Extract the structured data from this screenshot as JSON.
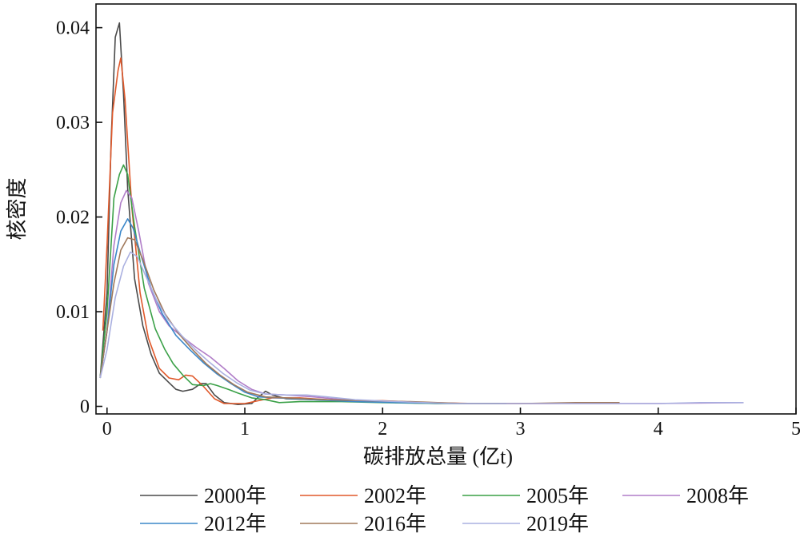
{
  "chart_data": {
    "type": "line",
    "title": "",
    "xlabel": "碳排放总量 (亿t)",
    "ylabel": "核密度",
    "xlim": [
      -0.08,
      5
    ],
    "ylim": [
      -0.0008,
      0.0425
    ],
    "x_ticks": [
      {
        "value": 0,
        "label": "0"
      },
      {
        "value": 1,
        "label": "1"
      },
      {
        "value": 2,
        "label": "2"
      },
      {
        "value": 3,
        "label": "3"
      },
      {
        "value": 4,
        "label": "4"
      },
      {
        "value": 5,
        "label": "5"
      }
    ],
    "y_ticks": [
      {
        "value": 0,
        "label": "0"
      },
      {
        "value": 0.01,
        "label": "0.01"
      },
      {
        "value": 0.02,
        "label": "0.02"
      },
      {
        "value": 0.03,
        "label": "0.03"
      },
      {
        "value": 0.04,
        "label": "0.04"
      }
    ],
    "grid": false,
    "legend_position": "bottom",
    "series": [
      {
        "name": "2000年",
        "color": "#4a4a4a",
        "points": [
          [
            -0.05,
            0.003
          ],
          [
            0.0,
            0.012
          ],
          [
            0.03,
            0.028
          ],
          [
            0.06,
            0.039
          ],
          [
            0.09,
            0.0405
          ],
          [
            0.12,
            0.033
          ],
          [
            0.15,
            0.023
          ],
          [
            0.2,
            0.0135
          ],
          [
            0.26,
            0.0085
          ],
          [
            0.32,
            0.0055
          ],
          [
            0.38,
            0.0035
          ],
          [
            0.45,
            0.0025
          ],
          [
            0.5,
            0.0018
          ],
          [
            0.55,
            0.0016
          ],
          [
            0.62,
            0.0018
          ],
          [
            0.68,
            0.0024
          ],
          [
            0.72,
            0.0024
          ],
          [
            0.78,
            0.0012
          ],
          [
            0.85,
            0.0004
          ],
          [
            0.95,
            0.0002
          ],
          [
            1.05,
            0.0003
          ],
          [
            1.1,
            0.001
          ],
          [
            1.15,
            0.0016
          ],
          [
            1.2,
            0.0012
          ],
          [
            1.3,
            0.0008
          ],
          [
            1.5,
            0.0007
          ],
          [
            1.8,
            0.0006
          ],
          [
            2.1,
            0.0004
          ],
          [
            2.4,
            0.0003
          ],
          [
            2.85,
            0.0003
          ]
        ]
      },
      {
        "name": "2002年",
        "color": "#e0582a",
        "points": [
          [
            -0.03,
            0.008
          ],
          [
            0.0,
            0.017
          ],
          [
            0.04,
            0.031
          ],
          [
            0.08,
            0.0355
          ],
          [
            0.1,
            0.0368
          ],
          [
            0.13,
            0.0325
          ],
          [
            0.18,
            0.021
          ],
          [
            0.24,
            0.012
          ],
          [
            0.3,
            0.0072
          ],
          [
            0.38,
            0.004
          ],
          [
            0.45,
            0.003
          ],
          [
            0.52,
            0.0028
          ],
          [
            0.57,
            0.0033
          ],
          [
            0.62,
            0.0032
          ],
          [
            0.7,
            0.0021
          ],
          [
            0.78,
            0.0008
          ],
          [
            0.85,
            0.0003
          ],
          [
            1.0,
            0.0003
          ],
          [
            1.1,
            0.0006
          ],
          [
            1.2,
            0.0009
          ],
          [
            1.4,
            0.0009
          ],
          [
            1.7,
            0.0006
          ],
          [
            2.0,
            0.0006
          ],
          [
            2.3,
            0.0004
          ],
          [
            2.7,
            0.0003
          ],
          [
            3.2,
            0.0003
          ],
          [
            3.6,
            0.0004
          ],
          [
            3.72,
            0.0004
          ]
        ]
      },
      {
        "name": "2005年",
        "color": "#3aa047",
        "points": [
          [
            -0.05,
            0.003
          ],
          [
            0.0,
            0.01
          ],
          [
            0.05,
            0.022
          ],
          [
            0.09,
            0.0245
          ],
          [
            0.12,
            0.0255
          ],
          [
            0.15,
            0.0245
          ],
          [
            0.2,
            0.019
          ],
          [
            0.27,
            0.0125
          ],
          [
            0.35,
            0.0082
          ],
          [
            0.42,
            0.006
          ],
          [
            0.48,
            0.0045
          ],
          [
            0.55,
            0.0033
          ],
          [
            0.62,
            0.0023
          ],
          [
            0.7,
            0.0022
          ],
          [
            0.75,
            0.0024
          ],
          [
            0.8,
            0.0022
          ],
          [
            0.88,
            0.0018
          ],
          [
            0.95,
            0.0014
          ],
          [
            1.05,
            0.0009
          ],
          [
            1.15,
            0.0007
          ],
          [
            1.25,
            0.0004
          ],
          [
            1.4,
            0.0005
          ],
          [
            1.7,
            0.0005
          ],
          [
            2.0,
            0.0004
          ],
          [
            2.4,
            0.0003
          ],
          [
            2.85,
            0.0003
          ]
        ]
      },
      {
        "name": "2008年",
        "color": "#b07dc8",
        "points": [
          [
            -0.05,
            0.003
          ],
          [
            0.0,
            0.008
          ],
          [
            0.05,
            0.017
          ],
          [
            0.1,
            0.0215
          ],
          [
            0.14,
            0.0228
          ],
          [
            0.18,
            0.022
          ],
          [
            0.23,
            0.0185
          ],
          [
            0.3,
            0.013
          ],
          [
            0.38,
            0.01
          ],
          [
            0.45,
            0.0085
          ],
          [
            0.55,
            0.0073
          ],
          [
            0.65,
            0.0062
          ],
          [
            0.75,
            0.0052
          ],
          [
            0.85,
            0.004
          ],
          [
            0.95,
            0.0027
          ],
          [
            1.05,
            0.0018
          ],
          [
            1.15,
            0.0013
          ],
          [
            1.3,
            0.0012
          ],
          [
            1.5,
            0.001
          ],
          [
            1.8,
            0.0006
          ],
          [
            2.1,
            0.0005
          ],
          [
            2.6,
            0.0003
          ],
          [
            3.1,
            0.0003
          ],
          [
            3.5,
            0.0003
          ],
          [
            4.0,
            0.0003
          ],
          [
            4.62,
            0.0004
          ]
        ]
      },
      {
        "name": "2012年",
        "color": "#3b87c9",
        "points": [
          [
            -0.05,
            0.003
          ],
          [
            0.0,
            0.008
          ],
          [
            0.05,
            0.015
          ],
          [
            0.1,
            0.0185
          ],
          [
            0.15,
            0.0198
          ],
          [
            0.19,
            0.0188
          ],
          [
            0.25,
            0.0158
          ],
          [
            0.32,
            0.0125
          ],
          [
            0.4,
            0.0098
          ],
          [
            0.5,
            0.0075
          ],
          [
            0.6,
            0.006
          ],
          [
            0.7,
            0.0046
          ],
          [
            0.8,
            0.0034
          ],
          [
            0.9,
            0.0024
          ],
          [
            1.0,
            0.0015
          ],
          [
            1.1,
            0.001
          ],
          [
            1.25,
            0.0009
          ],
          [
            1.5,
            0.0007
          ],
          [
            1.8,
            0.0005
          ],
          [
            2.1,
            0.0004
          ],
          [
            2.5,
            0.0003
          ],
          [
            2.9,
            0.0003
          ]
        ]
      },
      {
        "name": "2016年",
        "color": "#a0785a",
        "points": [
          [
            -0.05,
            0.003
          ],
          [
            0.0,
            0.008
          ],
          [
            0.05,
            0.013
          ],
          [
            0.1,
            0.0165
          ],
          [
            0.15,
            0.0178
          ],
          [
            0.2,
            0.0176
          ],
          [
            0.26,
            0.0155
          ],
          [
            0.34,
            0.0123
          ],
          [
            0.42,
            0.0098
          ],
          [
            0.52,
            0.0077
          ],
          [
            0.62,
            0.006
          ],
          [
            0.72,
            0.0045
          ],
          [
            0.82,
            0.0033
          ],
          [
            0.92,
            0.0023
          ],
          [
            1.02,
            0.0015
          ],
          [
            1.15,
            0.001
          ],
          [
            1.3,
            0.0009
          ],
          [
            1.6,
            0.0007
          ],
          [
            1.9,
            0.0006
          ],
          [
            2.2,
            0.0005
          ],
          [
            2.6,
            0.0003
          ],
          [
            3.0,
            0.0003
          ],
          [
            3.4,
            0.0004
          ],
          [
            3.72,
            0.0004
          ]
        ]
      },
      {
        "name": "2019年",
        "color": "#aab0e0",
        "points": [
          [
            -0.05,
            0.003
          ],
          [
            0.0,
            0.006
          ],
          [
            0.06,
            0.0115
          ],
          [
            0.12,
            0.0148
          ],
          [
            0.17,
            0.0163
          ],
          [
            0.22,
            0.0158
          ],
          [
            0.28,
            0.0138
          ],
          [
            0.36,
            0.0112
          ],
          [
            0.44,
            0.0092
          ],
          [
            0.54,
            0.0075
          ],
          [
            0.64,
            0.006
          ],
          [
            0.74,
            0.0047
          ],
          [
            0.84,
            0.0035
          ],
          [
            0.94,
            0.0025
          ],
          [
            1.04,
            0.0017
          ],
          [
            1.15,
            0.0013
          ],
          [
            1.3,
            0.0012
          ],
          [
            1.45,
            0.0012
          ],
          [
            1.6,
            0.001
          ],
          [
            1.8,
            0.0007
          ],
          [
            2.1,
            0.0005
          ],
          [
            2.5,
            0.0003
          ],
          [
            3.0,
            0.0003
          ],
          [
            3.5,
            0.0003
          ],
          [
            4.0,
            0.0003
          ],
          [
            4.3,
            0.0004
          ],
          [
            4.62,
            0.0004
          ]
        ]
      }
    ]
  }
}
